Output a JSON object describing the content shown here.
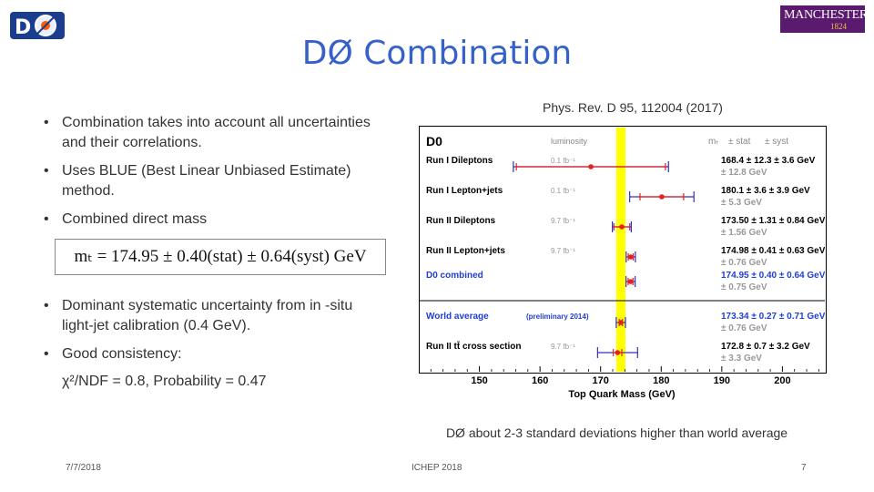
{
  "slide": {
    "title": "DØ Combination",
    "reference": "Phys. Rev. D 95, 112004 (2017)",
    "logo_left": "D0 experiment logo",
    "logo_right": {
      "word": "MANCHESTER",
      "year": "1824"
    },
    "bullets": [
      "Combination takes into account all uncertainties and their correlations.",
      "Uses BLUE (Best Linear Unbiased Estimate) method.",
      "Combined direct mass"
    ],
    "formula": "mₜ = 174.95 ± 0.40(stat) ± 0.64(syst)  GeV",
    "bullets2": [
      "Dominant systematic uncertainty from in -situ light-jet calibration (0.4 GeV).",
      "Good consistency:"
    ],
    "chi2": "χ²/NDF = 0.8, Probability = 0.47",
    "takeaway": "DØ about 2-3 standard deviations higher than world average",
    "footer": {
      "date": "7/7/2018",
      "conference": "ICHEP 2018",
      "page": "7"
    }
  },
  "chart_data": {
    "type": "scatter",
    "title": "D0",
    "xlabel": "Top Quark Mass (GeV)",
    "xlim": [
      140,
      207
    ],
    "x_ticks": [
      150,
      160,
      170,
      180,
      190,
      200
    ],
    "header": {
      "luminosity": "luminosity",
      "mt": "mₜ",
      "stat": "± stat",
      "syst": "± syst"
    },
    "band": {
      "center": 173.34,
      "half_width": 0.76
    },
    "measurements": [
      {
        "label": "Run I Dileptons",
        "lumi": "0.1 fb⁻¹",
        "value": 168.4,
        "stat": 12.3,
        "syst": 3.6,
        "total": 12.8,
        "line1": "168.4 ± 12.3 ± 3.6 GeV",
        "line2": "± 12.8 GeV",
        "color": "#e52020",
        "label_color": "#000000"
      },
      {
        "label": "Run I Lepton+jets",
        "lumi": "0.1 fb⁻¹",
        "value": 180.1,
        "stat": 3.6,
        "syst": 3.9,
        "total": 5.3,
        "line1": "180.1 ± 3.6 ± 3.9 GeV",
        "line2": "± 5.3 GeV",
        "color": "#e52020",
        "label_color": "#000000"
      },
      {
        "label": "Run II Dileptons",
        "lumi": "9.7 fb⁻¹",
        "value": 173.5,
        "stat": 1.31,
        "syst": 0.84,
        "total": 1.56,
        "line1": "173.50 ± 1.31 ± 0.84 GeV",
        "line2": "± 1.56 GeV",
        "color": "#e52020",
        "label_color": "#000000"
      },
      {
        "label": "Run II Lepton+jets",
        "lumi": "9.7 fb⁻¹",
        "value": 174.98,
        "stat": 0.41,
        "syst": 0.63,
        "total": 0.76,
        "line1": "174.98 ± 0.41 ± 0.63 GeV",
        "line2": "± 0.76 GeV",
        "color": "#e52020",
        "label_color": "#000000"
      },
      {
        "label": "D0 combined",
        "lumi": "",
        "value": 174.95,
        "stat": 0.4,
        "syst": 0.64,
        "total": 0.75,
        "line1": "174.95 ± 0.40 ± 0.64 GeV",
        "line2": "± 0.75 GeV",
        "color": "#e52020",
        "label_color": "#2040d0"
      },
      {
        "label": "World average",
        "lumi": "(preliminary 2014)",
        "value": 173.34,
        "stat": 0.27,
        "syst": 0.71,
        "total": 0.76,
        "line1": "173.34 ± 0.27 ± 0.71 GeV",
        "line2": "± 0.76 GeV",
        "color": "#e52020",
        "label_color": "#2040d0"
      },
      {
        "label": "Run II tt̄ cross section",
        "lumi": "9.7 fb⁻¹",
        "value": 172.8,
        "stat": 0.7,
        "syst": 3.2,
        "total": 3.3,
        "line1": "172.8 ± 0.7 ± 3.2 GeV",
        "line2": "± 3.3 GeV",
        "color": "#e52020",
        "label_color": "#000000"
      }
    ],
    "colors": {
      "band": "#ffff00",
      "bar_stat": "#e52020",
      "bar_total": "#3030c0",
      "label_blue": "#2040d0"
    }
  }
}
